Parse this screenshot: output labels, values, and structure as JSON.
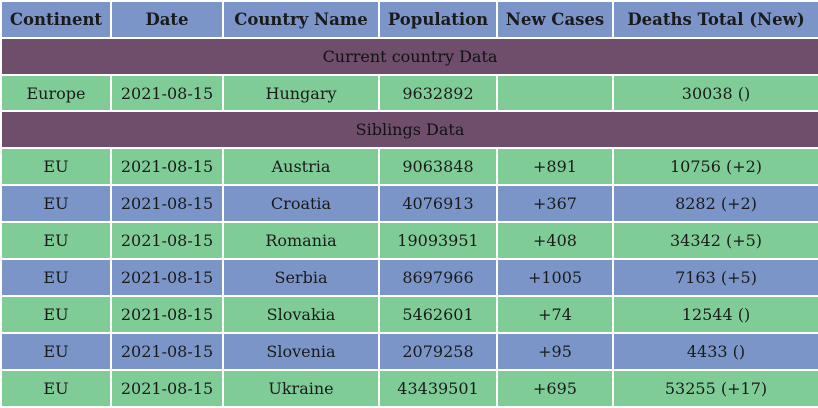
{
  "headers": [
    "Continent",
    "Date",
    "Country Name",
    "Population",
    "New Cases",
    "Deaths Total (New)"
  ],
  "current_section_label": "Current country Data",
  "current": {
    "continent": "Europe",
    "date": "2021-08-15",
    "country": "Hungary",
    "population": "9632892",
    "new_cases": "",
    "deaths": "30038 ()"
  },
  "siblings_section_label": "Siblings Data",
  "siblings": [
    {
      "continent": "EU",
      "date": "2021-08-15",
      "country": "Austria",
      "population": "9063848",
      "new_cases": "+891",
      "deaths": "10756 (+2)"
    },
    {
      "continent": "EU",
      "date": "2021-08-15",
      "country": "Croatia",
      "population": "4076913",
      "new_cases": "+367",
      "deaths": "8282 (+2)"
    },
    {
      "continent": "EU",
      "date": "2021-08-15",
      "country": "Romania",
      "population": "19093951",
      "new_cases": "+408",
      "deaths": "34342 (+5)"
    },
    {
      "continent": "EU",
      "date": "2021-08-15",
      "country": "Serbia",
      "population": "8697966",
      "new_cases": "+1005",
      "deaths": "7163 (+5)"
    },
    {
      "continent": "EU",
      "date": "2021-08-15",
      "country": "Slovakia",
      "population": "5462601",
      "new_cases": "+74",
      "deaths": "12544 ()"
    },
    {
      "continent": "EU",
      "date": "2021-08-15",
      "country": "Slovenia",
      "population": "2079258",
      "new_cases": "+95",
      "deaths": "4433 ()"
    },
    {
      "continent": "EU",
      "date": "2021-08-15",
      "country": "Ukraine",
      "population": "43439501",
      "new_cases": "+695",
      "deaths": "53255 (+17)"
    }
  ],
  "colors": {
    "header": "#7b95c9",
    "section": "#6f4e6b",
    "row_green": "#80cc97",
    "row_blue": "#7b95c9"
  }
}
